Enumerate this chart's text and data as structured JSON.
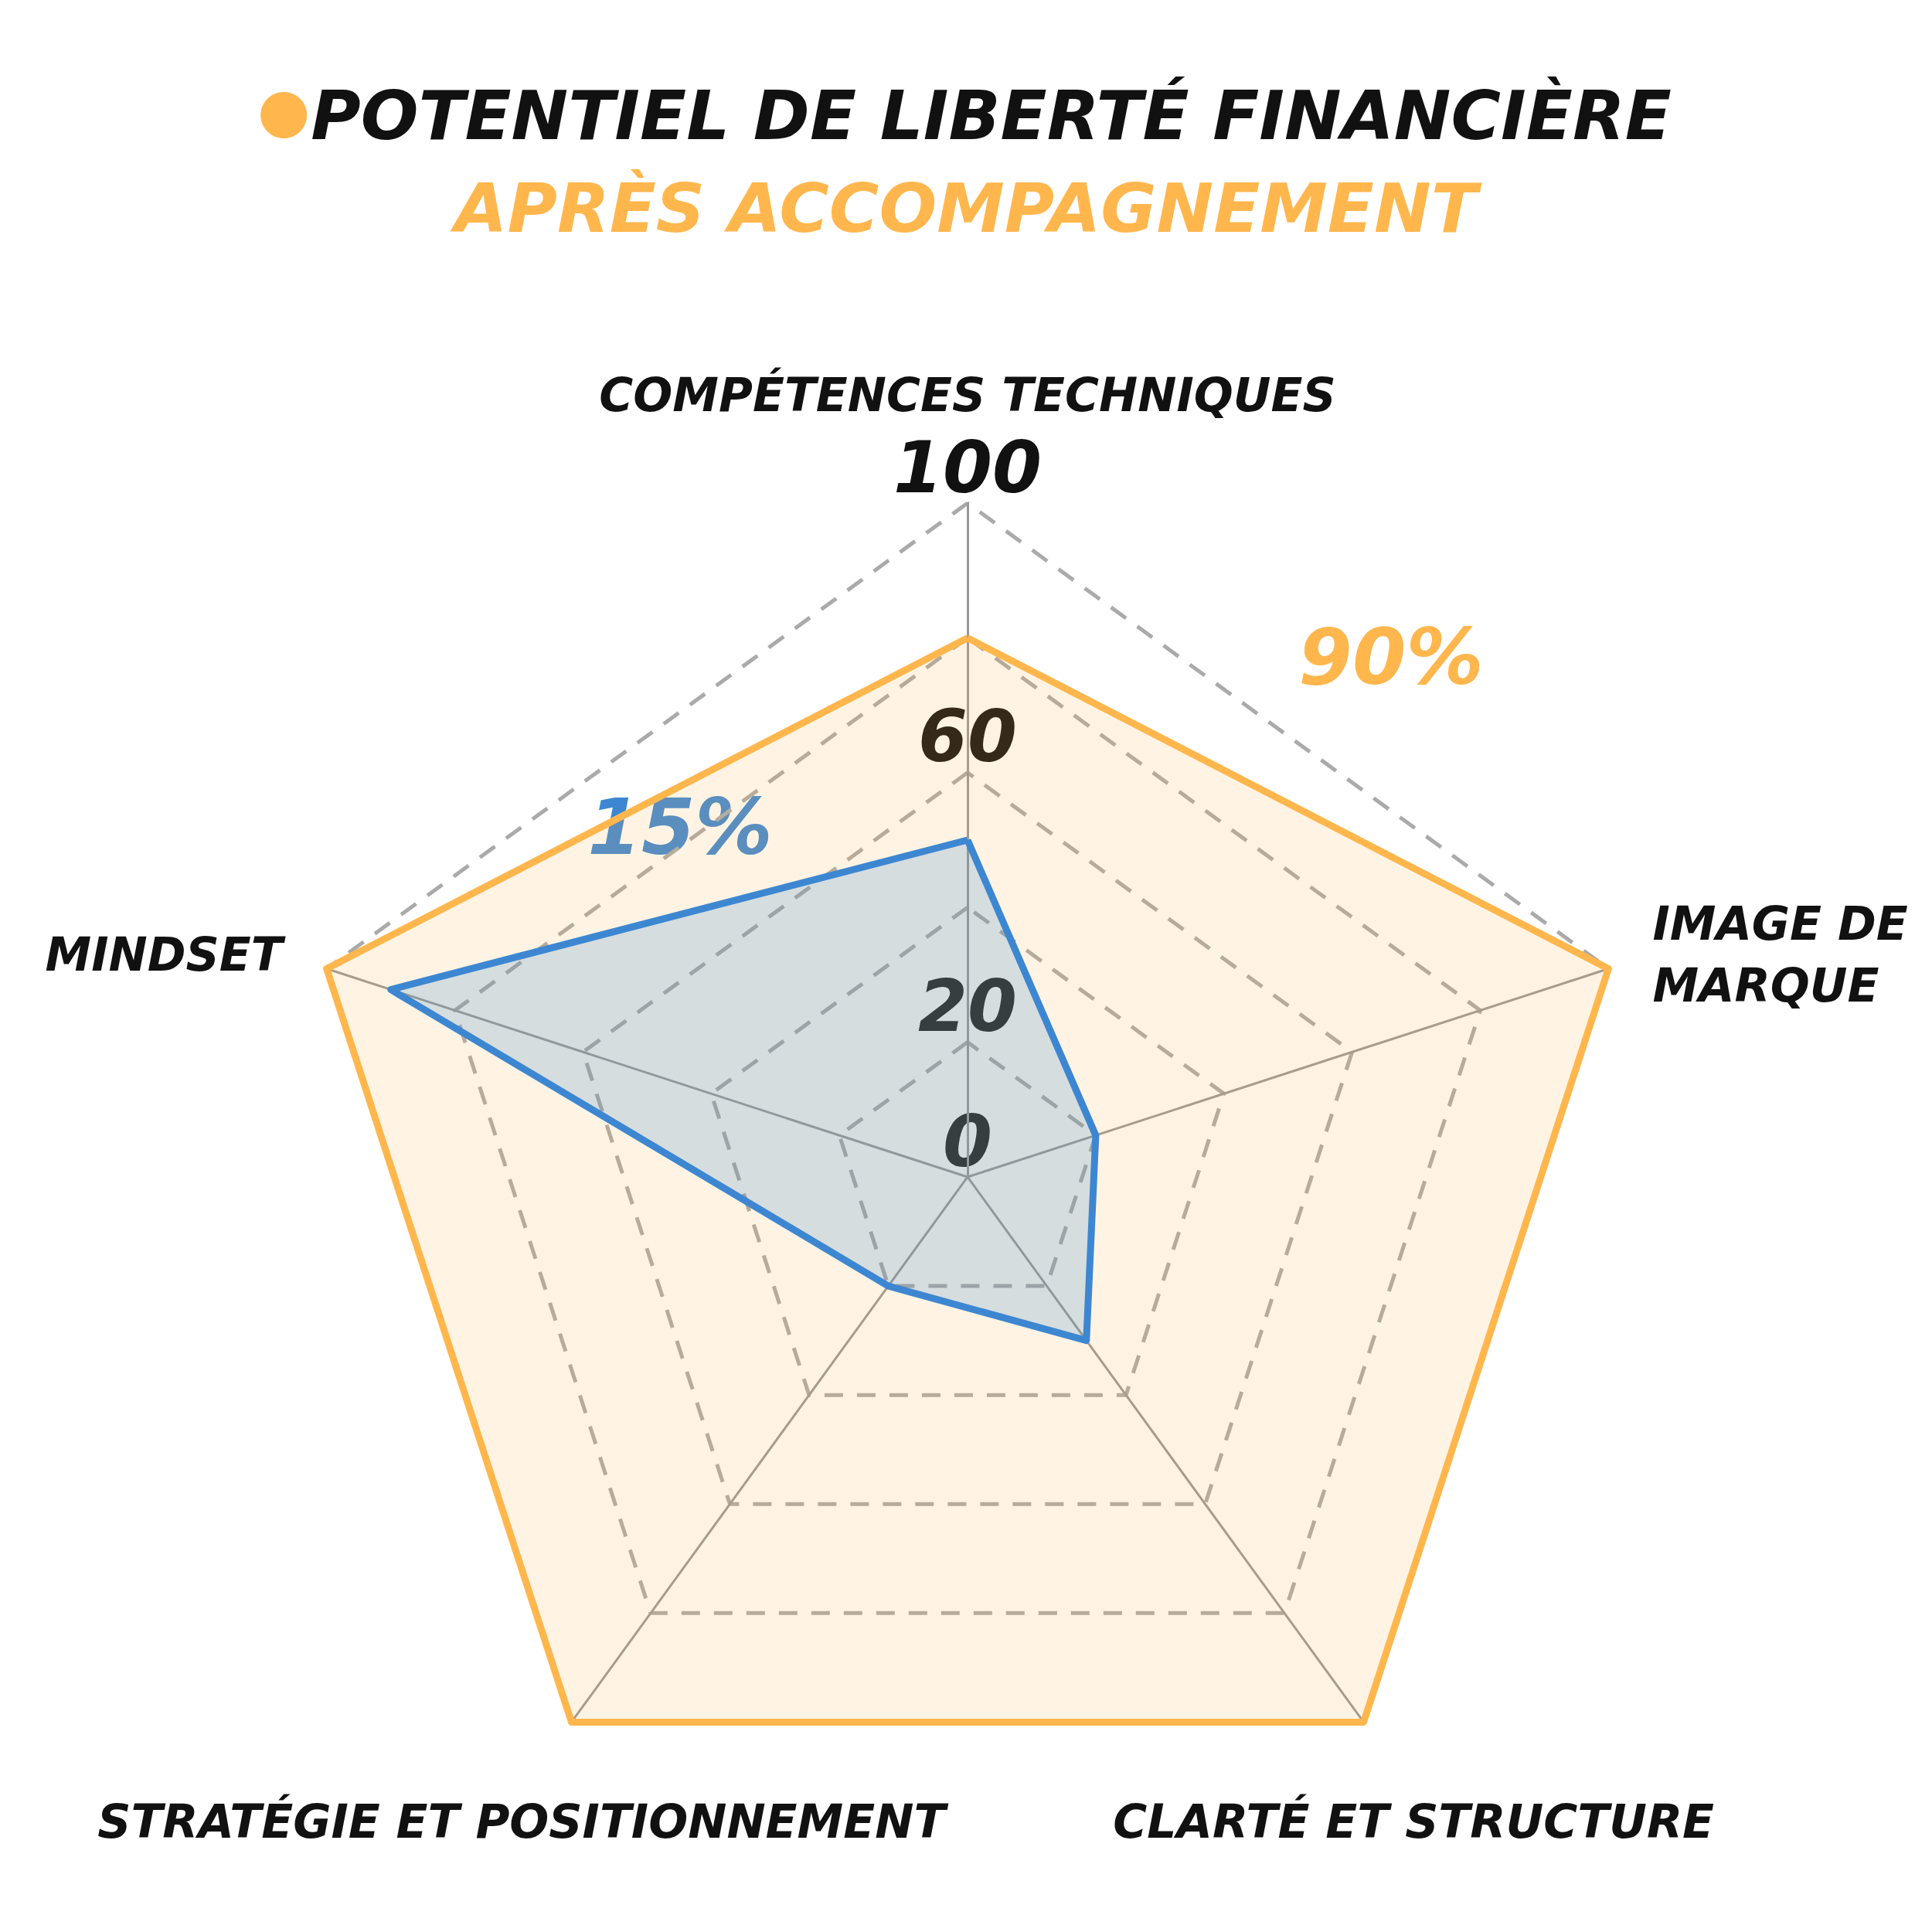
{
  "chart_data": {
    "type": "radar",
    "subtitle": "APRÈS ACCOMPAGNEMENT",
    "categories": [
      "COMPÉTENCES TECHNIQUES",
      "IMAGE DE MARQUE",
      "CLARTÉ ET STRUCTURE",
      "STRATÉGIE ET POSITIONNEMENT",
      "MINDSET"
    ],
    "series": [
      {
        "name": "POTENTIEL DE LIBERTÉ FINANCIÈRE",
        "color": "#ffb74d",
        "values": [
          80,
          100,
          100,
          100,
          100
        ]
      },
      {
        "color": "#3d87d2",
        "values": [
          50,
          20,
          30,
          20,
          90
        ]
      }
    ],
    "ylim": [
      0,
      100
    ],
    "yticks": [
      0,
      20,
      60,
      100
    ],
    "annotations": [
      "90%",
      "15%"
    ],
    "legend": "top",
    "marker": "none",
    "line_style": "solid",
    "grid": true
  }
}
